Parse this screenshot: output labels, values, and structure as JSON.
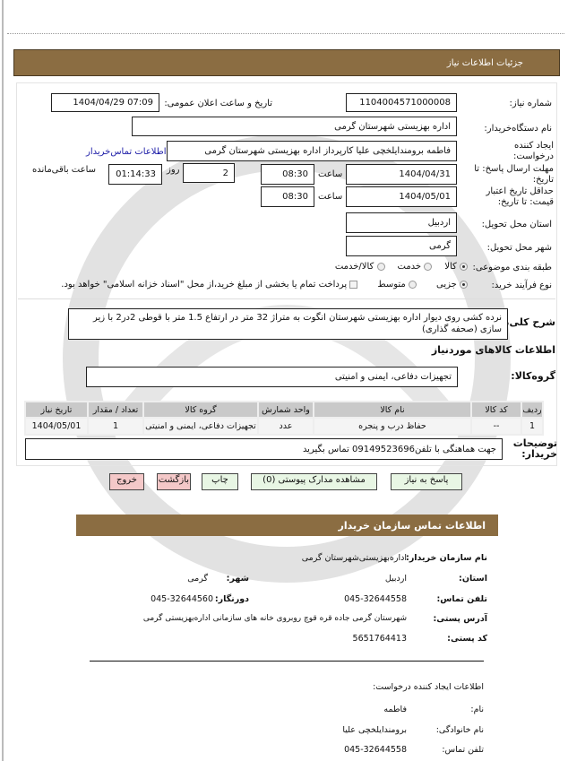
{
  "page_title": "جزئیات اطلاعات نیاز",
  "fields": {
    "need_number_label": "شماره نیاز:",
    "need_number": "1104004571000008",
    "announce_label": "تاریخ و ساعت اعلان عمومی:",
    "announce_value": "1404/04/29 07:09",
    "buyer_org_label": "نام دستگاه‌خریدار:",
    "buyer_org": "اداره  بهزیستی  شهرستان  گرمی",
    "creator_label": "ایجاد کننده درخواست:",
    "creator": "فاطمه  برومندایلخچی علیا کارپرداز اداره  بهزیستی  شهرستان  گرمی",
    "contact_link": "اطلاعات تماس‌خریدار",
    "deadline_label": "مهلت ارسال پاسخ: تا تاریخ:",
    "deadline_date": "1404/04/31",
    "time_label": "ساعت",
    "deadline_time": "08:30",
    "days_label": "روز",
    "days": "2",
    "remaining": "01:14:33",
    "remaining_label": "ساعت باقی‌مانده",
    "validity_label": "حداقل تاریخ اعتبار قیمت: تا تاریخ:",
    "validity_date": "1404/05/01",
    "validity_time": "08:30",
    "province_label": "استان محل تحویل:",
    "province": "اردبیل",
    "city_label": "شهر محل تحویل:",
    "city": "گرمی",
    "category_label": "طبقه بندی موضوعی:",
    "category_options": [
      "کالا",
      "خدمت",
      "کالا/خدمت"
    ],
    "category_selected": "کالا",
    "process_label": "نوع فرآیند خرید:",
    "process_options": [
      "جزیی",
      "متوسط"
    ],
    "process_selected": "جزیی",
    "payment_note": "پرداخت تمام یا بخشی از مبلغ خرید،از محل \"اسناد خزانه اسلامی\" خواهد بود."
  },
  "description": {
    "label": "شرح کلی‌نیاز:",
    "text": "نرده کشی روی دیوار اداره  بهزیستی  شهرستان انگوت به متراژ 32 متر در ارتفاع 1.5 متر با قوطی 2در2 با زیر سازی  (صحفه گذاری)"
  },
  "goods": {
    "section_title": "اطلاعات کالاهای موردنیاز",
    "group_label": "گروه‌کالا:",
    "group": "تجهیزات دفاعی، ایمنی و امنیتی",
    "columns": [
      "ردیف",
      "کد کالا",
      "نام کالا",
      "واحد شمارش",
      "گروه کالا",
      "تعداد / مقدار",
      "تاریخ نیاز"
    ],
    "rows": [
      [
        "1",
        "--",
        "حفاظ درب و پنجره",
        "عدد",
        "تجهیزات دفاعی، ایمنی و امنیتی",
        "1",
        "1404/05/01"
      ]
    ]
  },
  "notes": {
    "label": "توضیحات خریدار:",
    "text": "جهت  هماهنگی با  تلفن09149523696 تماس بگیرید"
  },
  "buttons": {
    "reply": "پاسخ به نیاز",
    "attachments": "مشاهده مدارک پیوستی (0)",
    "print": "چاپ",
    "back": "بازگشت",
    "exit": "خروج"
  },
  "contact": {
    "title": "اطلاعات تماس سازمان خریدار",
    "org_label": "نام سازمان خریدار:",
    "org": "اداره‌بهزیستی‌شهرستان گرمی",
    "province_label": "استان:",
    "province": "اردبیل",
    "city_label": "شهر:",
    "city": "گرمی",
    "phone_label": "تلفن تماس:",
    "phone": "045-32644558",
    "fax_label": "دورنگار:",
    "fax": "045-32644560",
    "address_label": "آدرس پستی:",
    "address": "شهرستان گرمی جاده قره قوچ روبروی خانه های سازمانی  اداره‌بهزیستی گرمی",
    "postal_label": "کد پستی:",
    "postal": "5651764413"
  },
  "creator_info": {
    "title": "اطلاعات ایجاد کننده درخواست:",
    "name_label": "نام:",
    "name": "فاطمه",
    "family_label": "نام خانوادگی:",
    "family": "برومندایلخچی علیا",
    "phone_label": "تلفن تماس:",
    "phone": "045-32644558"
  },
  "colors": {
    "header_bar": "#8B6D42",
    "green_button": "#e8f6e4",
    "pink_button": "#f4c8c8",
    "link": "#1a1aa6"
  }
}
